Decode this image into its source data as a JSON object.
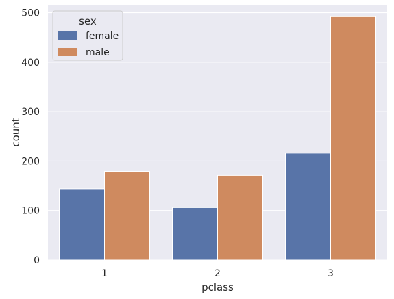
{
  "chart_data": {
    "type": "bar",
    "categories": [
      "1",
      "2",
      "3"
    ],
    "series": [
      {
        "name": "female",
        "values": [
          144,
          106,
          216
        ],
        "color": "#5874a8"
      },
      {
        "name": "male",
        "values": [
          179,
          171,
          492
        ],
        "color": "#cf8a5f"
      }
    ],
    "xlabel": "pclass",
    "ylabel": "count",
    "ylim": [
      0,
      516
    ],
    "yticks": [
      0,
      100,
      200,
      300,
      400,
      500
    ],
    "grid": true,
    "legend": {
      "title": "sex",
      "placement": "top-left"
    },
    "background": "#eaeaf2"
  }
}
